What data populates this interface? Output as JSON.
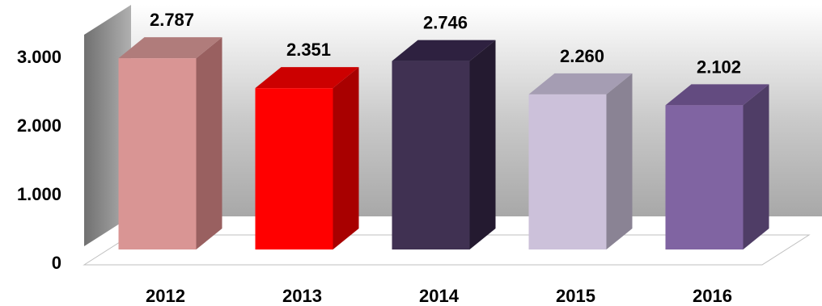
{
  "chart_data": {
    "type": "bar",
    "categories": [
      "2012",
      "2013",
      "2014",
      "2015",
      "2016"
    ],
    "values": [
      2787,
      2351,
      2746,
      2260,
      2102
    ],
    "data_labels": [
      "2.787",
      "2.351",
      "2.746",
      "2.260",
      "2.102"
    ],
    "y_ticks": [
      {
        "value": 0,
        "label": "0"
      },
      {
        "value": 1000,
        "label": "1.000"
      },
      {
        "value": 2000,
        "label": "2.000"
      },
      {
        "value": 3000,
        "label": "3.000"
      }
    ],
    "ylim": [
      0,
      3000
    ],
    "grid": false,
    "legend": "none",
    "bar_colors": [
      {
        "front": "#d99594",
        "side": "#996060",
        "top": "#b07c7b"
      },
      {
        "front": "#ff0000",
        "side": "#a80000",
        "top": "#cc0000"
      },
      {
        "front": "#403152",
        "side": "#241a30",
        "top": "#2e2140"
      },
      {
        "front": "#ccc1da",
        "side": "#8a8394",
        "top": "#a59db3"
      },
      {
        "front": "#8064a2",
        "side": "#4f3d66",
        "top": "#634b80"
      }
    ],
    "wall_colors": {
      "back": "#c8c8c8",
      "side": "#909090",
      "floor": "#ffffff"
    }
  }
}
